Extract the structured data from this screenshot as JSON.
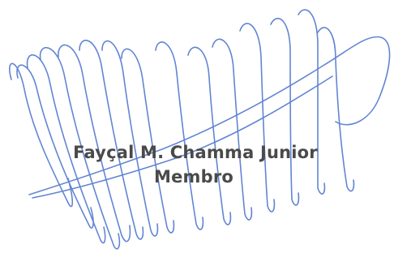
{
  "signature_block": {
    "name": "Fayçal M. Chamma Junior",
    "role": "Membro"
  },
  "colors": {
    "ink": "#5a7fd1",
    "text": "#4a4a4a",
    "background": "#ffffff"
  },
  "icons": {
    "signature": "handwritten-signature-icon"
  }
}
